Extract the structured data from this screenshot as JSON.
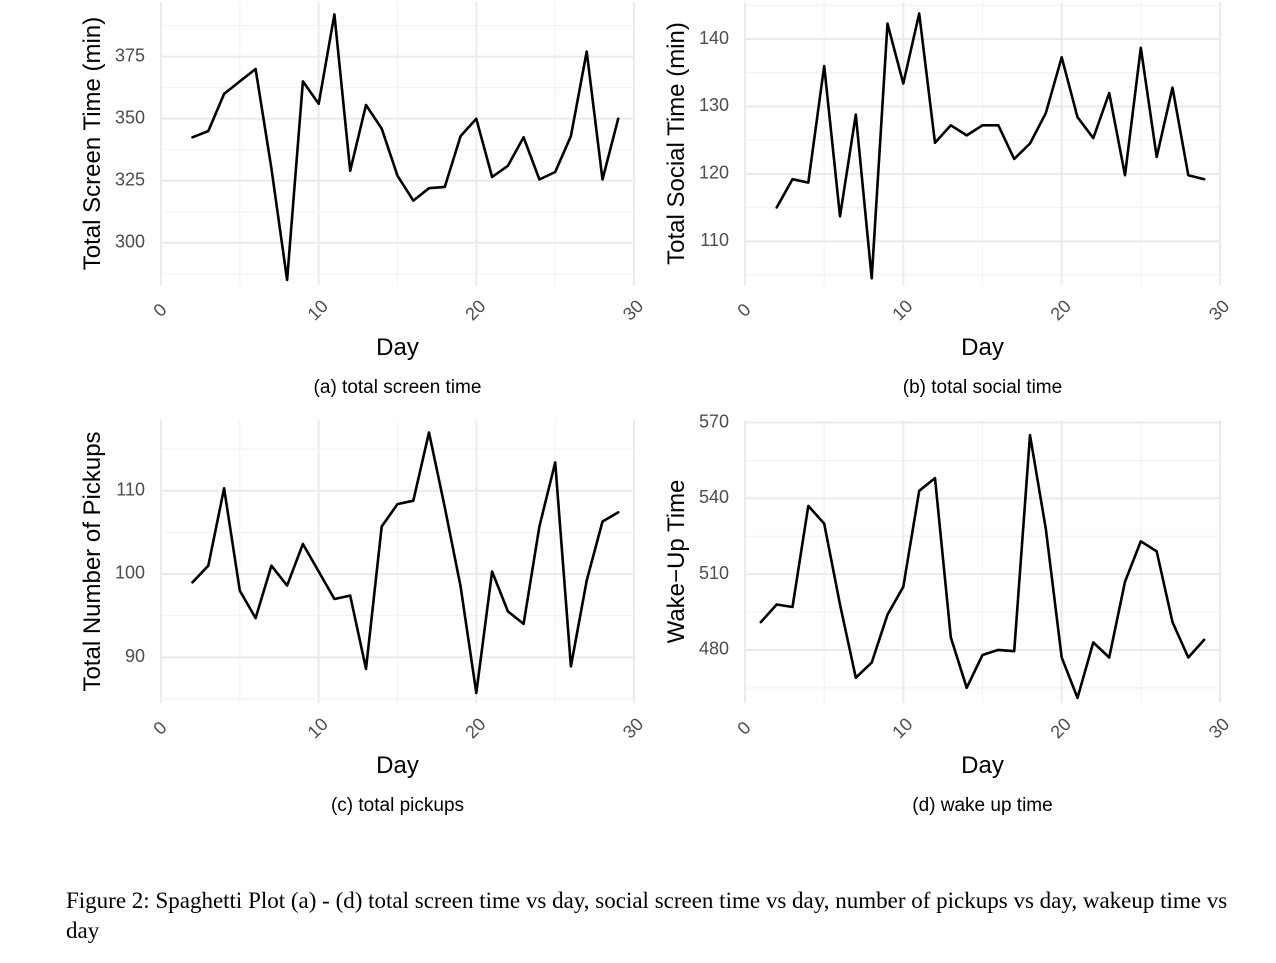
{
  "figure": {
    "caption": "Figure 2: Spaghetti Plot (a) - (d) total screen time vs day, social screen time vs day, number of pickups vs day, wakeup time vs day"
  },
  "chart_data": [
    {
      "type": "line",
      "panel": "(a) total screen time",
      "xlabel": "Day",
      "ylabel": "Total Screen Time (min)",
      "xlim": [
        0,
        30
      ],
      "ylim": [
        283,
        397
      ],
      "xticks": [
        0,
        10,
        20,
        30
      ],
      "yticks": [
        300,
        325,
        350,
        375
      ],
      "grid": true,
      "color": "#000000",
      "x": [
        2,
        3,
        4,
        5,
        6,
        7,
        8,
        9,
        10,
        11,
        12,
        13,
        14,
        15,
        16,
        17,
        18,
        19,
        20,
        21,
        22,
        23,
        24,
        25,
        26,
        27,
        28,
        29
      ],
      "y": [
        342.5,
        345,
        360,
        365,
        370,
        330,
        285,
        365,
        356,
        392,
        329,
        355.5,
        346,
        327,
        317,
        322,
        322.5,
        343,
        350,
        326.5,
        331,
        342.5,
        325.5,
        328.5,
        343,
        377,
        325.5,
        350
      ]
    },
    {
      "type": "line",
      "panel": "(b) total social time",
      "xlabel": "Day",
      "ylabel": "Total Social Time (min)",
      "xlim": [
        0,
        30
      ],
      "ylim": [
        103.5,
        145.5
      ],
      "xticks": [
        0,
        10,
        20,
        30
      ],
      "yticks": [
        110,
        120,
        130,
        140
      ],
      "grid": true,
      "color": "#000000",
      "x": [
        2,
        3,
        4,
        5,
        6,
        7,
        8,
        9,
        10,
        11,
        12,
        13,
        14,
        15,
        16,
        17,
        18,
        19,
        20,
        21,
        22,
        23,
        24,
        25,
        26,
        27,
        28,
        29
      ],
      "y": [
        115,
        119.2,
        118.7,
        136,
        113.7,
        128.8,
        104.5,
        142.3,
        133.4,
        143.8,
        124.6,
        127.2,
        125.7,
        127.2,
        127.2,
        122.2,
        124.5,
        129,
        137.3,
        128.4,
        125.3,
        132,
        119.8,
        138.7,
        122.5,
        132.8,
        119.8,
        119.2
      ]
    },
    {
      "type": "line",
      "panel": "(c) total pickups",
      "xlabel": "Day",
      "ylabel": "Total Number of Pickups",
      "xlim": [
        0,
        30
      ],
      "ylim": [
        84.5,
        118.5
      ],
      "xticks": [
        0,
        10,
        20,
        30
      ],
      "yticks": [
        90,
        100,
        110
      ],
      "grid": true,
      "color": "#000000",
      "x": [
        2,
        3,
        4,
        5,
        6,
        7,
        8,
        9,
        10,
        11,
        12,
        13,
        14,
        15,
        16,
        17,
        18,
        19,
        20,
        21,
        22,
        23,
        24,
        25,
        26,
        27,
        28,
        29
      ],
      "y": [
        99,
        101,
        110.3,
        98,
        94.7,
        101,
        98.6,
        103.6,
        100.3,
        97,
        97.4,
        88.6,
        105.7,
        108.4,
        108.8,
        117,
        108,
        98.5,
        85.7,
        100.3,
        95.5,
        94,
        105.7,
        113.4,
        88.9,
        99.2,
        106.3,
        107.4
      ]
    },
    {
      "type": "line",
      "panel": "(d) wake up time",
      "xlabel": "Day",
      "ylabel": "Wake−Up Time",
      "xlim": [
        0,
        30
      ],
      "ylim": [
        459,
        571
      ],
      "xticks": [
        0,
        10,
        20,
        30
      ],
      "yticks": [
        480,
        510,
        540,
        570
      ],
      "grid": true,
      "color": "#000000",
      "x": [
        1,
        2,
        3,
        4,
        5,
        6,
        7,
        8,
        9,
        10,
        11,
        12,
        13,
        14,
        15,
        16,
        17,
        18,
        19,
        20,
        21,
        22,
        23,
        24,
        25,
        26,
        27,
        28,
        29
      ],
      "y": [
        491,
        498,
        497,
        537,
        530,
        498,
        469,
        475,
        494,
        505,
        543,
        548,
        485,
        465,
        478,
        480,
        479.5,
        565,
        528,
        477,
        461,
        483,
        477,
        507,
        523,
        519,
        491,
        477,
        484
      ]
    }
  ]
}
